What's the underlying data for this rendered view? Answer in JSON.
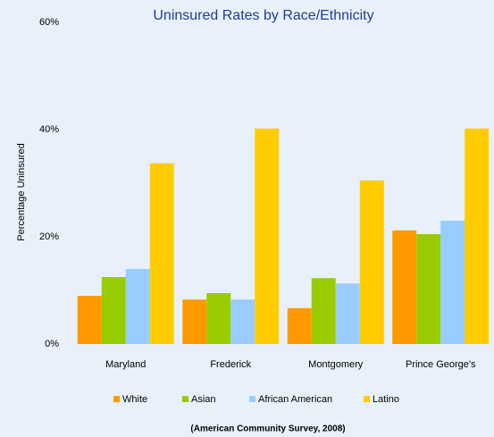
{
  "chart_data": {
    "type": "bar",
    "title": "Uninsured Rates by Race/Ethnicity",
    "y_label": "Percentage Uninsured",
    "note": "(American Community Survey, 2008)",
    "categories": [
      "Maryland",
      "Frederick",
      "Montgomery",
      "Prince George's"
    ],
    "series": [
      {
        "name": "White",
        "color": "#ff9900",
        "values": [
          9,
          8.3,
          6.7,
          21.2
        ]
      },
      {
        "name": "Asian",
        "color": "#99cc00",
        "values": [
          12.5,
          9.5,
          12.3,
          20.5
        ]
      },
      {
        "name": "African American",
        "color": "#99ccff",
        "values": [
          14,
          8.3,
          11.3,
          23
        ]
      },
      {
        "name": "Latino",
        "color": "#ffcc00",
        "values": [
          33.7,
          40.2,
          30.5,
          40.2
        ]
      }
    ],
    "ylim": [
      0,
      60
    ],
    "yticks": [
      {
        "value": 0,
        "label": "0%"
      },
      {
        "value": 20,
        "label": "20%"
      },
      {
        "value": 40,
        "label": "40%"
      },
      {
        "value": 60,
        "label": "60%"
      }
    ]
  }
}
